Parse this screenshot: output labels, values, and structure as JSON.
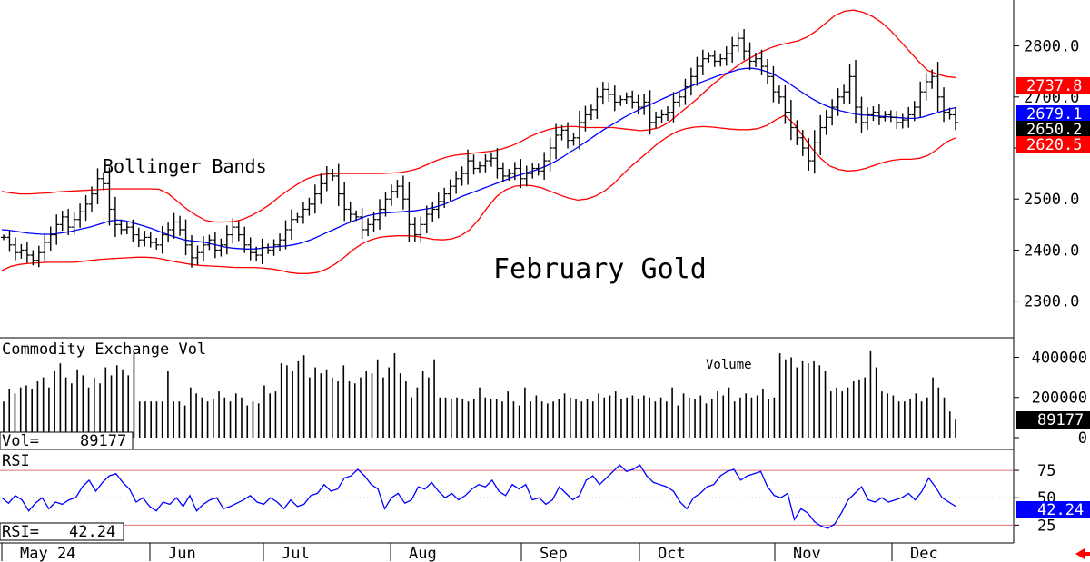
{
  "chart_data": [
    {
      "type": "ohlc-bar",
      "panel": "price",
      "title": "February Gold",
      "annotation": "Bollinger Bands",
      "ylim": [
        2230,
        2890
      ],
      "y_ticks": [
        {
          "value": 2300,
          "label": "2300.0"
        },
        {
          "value": 2400,
          "label": "2400.0"
        },
        {
          "value": 2500,
          "label": "2500.0"
        },
        {
          "value": 2600,
          "label": "2600.0"
        },
        {
          "value": 2700,
          "label": "2700.0"
        },
        {
          "value": 2800,
          "label": "2800.0"
        }
      ],
      "x_labels": [
        "May 24",
        "Jun",
        "Jul",
        "Aug",
        "Sep",
        "Oct",
        "Nov",
        "Dec"
      ],
      "price_series": [
        2425,
        2410,
        2395,
        2400,
        2390,
        2380,
        2395,
        2415,
        2430,
        2450,
        2465,
        2445,
        2460,
        2475,
        2490,
        2510,
        2540,
        2530,
        2480,
        2450,
        2440,
        2445,
        2430,
        2420,
        2425,
        2415,
        2410,
        2430,
        2440,
        2455,
        2440,
        2410,
        2385,
        2395,
        2410,
        2420,
        2400,
        2410,
        2430,
        2445,
        2430,
        2410,
        2395,
        2390,
        2405,
        2400,
        2410,
        2420,
        2440,
        2460,
        2465,
        2480,
        2490,
        2510,
        2530,
        2550,
        2545,
        2510,
        2480,
        2470,
        2465,
        2440,
        2450,
        2460,
        2480,
        2500,
        2515,
        2525,
        2500,
        2450,
        2430,
        2450,
        2470,
        2480,
        2495,
        2510,
        2525,
        2540,
        2550,
        2575,
        2560,
        2565,
        2575,
        2580,
        2560,
        2545,
        2550,
        2560,
        2540,
        2550,
        2560,
        2555,
        2575,
        2600,
        2625,
        2635,
        2615,
        2620,
        2650,
        2665,
        2675,
        2700,
        2715,
        2705,
        2690,
        2695,
        2700,
        2690,
        2680,
        2690,
        2650,
        2660,
        2665,
        2670,
        2690,
        2700,
        2720,
        2740,
        2760,
        2775,
        2780,
        2770,
        2775,
        2785,
        2800,
        2815,
        2790,
        2770,
        2775,
        2760,
        2740,
        2710,
        2700,
        2670,
        2640,
        2620,
        2600,
        2575,
        2610,
        2640,
        2660,
        2680,
        2700,
        2710,
        2740,
        2680,
        2650,
        2665,
        2670,
        2660,
        2665,
        2660,
        2650,
        2655,
        2665,
        2680,
        2710,
        2730,
        2740,
        2700,
        2670,
        2665,
        2650
      ],
      "middle_band": [
        2440,
        2439,
        2437,
        2435,
        2433,
        2432,
        2431,
        2431,
        2432,
        2434,
        2436,
        2439,
        2442,
        2445,
        2449,
        2453,
        2457,
        2459,
        2458,
        2455,
        2451,
        2447,
        2443,
        2438,
        2433,
        2428,
        2424,
        2420,
        2418,
        2417,
        2415,
        2412,
        2409,
        2406,
        2404,
        2403,
        2402,
        2402,
        2403,
        2405,
        2406,
        2407,
        2408,
        2410,
        2413,
        2417,
        2422,
        2428,
        2434,
        2440,
        2446,
        2452,
        2457,
        2462,
        2467,
        2470,
        2472,
        2473,
        2474,
        2475,
        2476,
        2477,
        2479,
        2481,
        2484,
        2488,
        2493,
        2499,
        2505,
        2510,
        2515,
        2520,
        2525,
        2530,
        2535,
        2540,
        2545,
        2549,
        2553,
        2557,
        2562,
        2568,
        2575,
        2583,
        2592,
        2600,
        2609,
        2618,
        2627,
        2636,
        2644,
        2652,
        2660,
        2667,
        2674,
        2680,
        2686,
        2692,
        2698,
        2704,
        2710,
        2716,
        2722,
        2727,
        2732,
        2737,
        2742,
        2746,
        2750,
        2754,
        2756,
        2756,
        2754,
        2750,
        2745,
        2738,
        2730,
        2721,
        2712,
        2703,
        2695,
        2688,
        2682,
        2677,
        2673,
        2670,
        2667,
        2665,
        2664,
        2663,
        2662,
        2661,
        2660,
        2659,
        2658,
        2658,
        2660,
        2664,
        2668,
        2672,
        2676,
        2679
      ],
      "upper_band": [
        2515,
        2512,
        2510,
        2510,
        2511,
        2512,
        2514,
        2515,
        2516,
        2517,
        2518,
        2519,
        2520,
        2520,
        2520,
        2520,
        2520,
        2519,
        2510,
        2495,
        2480,
        2468,
        2458,
        2455,
        2455,
        2456,
        2460,
        2468,
        2478,
        2490,
        2505,
        2518,
        2530,
        2540,
        2546,
        2549,
        2550,
        2550,
        2550,
        2550,
        2550,
        2550,
        2551,
        2552,
        2555,
        2560,
        2568,
        2576,
        2582,
        2586,
        2588,
        2590,
        2592,
        2594,
        2598,
        2604,
        2612,
        2622,
        2630,
        2636,
        2640,
        2642,
        2642,
        2640,
        2640,
        2640,
        2640,
        2638,
        2636,
        2634,
        2636,
        2640,
        2650,
        2665,
        2680,
        2695,
        2712,
        2728,
        2742,
        2755,
        2768,
        2778,
        2788,
        2796,
        2802,
        2806,
        2810,
        2818,
        2830,
        2845,
        2860,
        2868,
        2870,
        2866,
        2858,
        2846,
        2830,
        2810,
        2790,
        2770,
        2752,
        2745,
        2740,
        2738
      ],
      "lower_band": [
        2360,
        2368,
        2372,
        2374,
        2375,
        2376,
        2376,
        2376,
        2376,
        2378,
        2380,
        2382,
        2383,
        2384,
        2385,
        2386,
        2386,
        2385,
        2382,
        2378,
        2375,
        2372,
        2370,
        2369,
        2368,
        2367,
        2366,
        2366,
        2366,
        2365,
        2363,
        2360,
        2356,
        2354,
        2354,
        2356,
        2362,
        2372,
        2385,
        2400,
        2412,
        2420,
        2425,
        2427,
        2428,
        2428,
        2427,
        2424,
        2421,
        2420,
        2422,
        2428,
        2440,
        2460,
        2484,
        2505,
        2518,
        2525,
        2527,
        2526,
        2522,
        2515,
        2508,
        2502,
        2498,
        2500,
        2506,
        2516,
        2530,
        2548,
        2565,
        2580,
        2595,
        2610,
        2622,
        2632,
        2638,
        2641,
        2642,
        2641,
        2639,
        2637,
        2636,
        2636,
        2638,
        2644,
        2655,
        2664,
        2648,
        2625,
        2600,
        2580,
        2565,
        2558,
        2555,
        2556,
        2560,
        2566,
        2572,
        2576,
        2578,
        2578,
        2580,
        2586,
        2598,
        2612,
        2620
      ],
      "value_labels": {
        "upper": "2737.8",
        "middle": "2679.1",
        "close": "2650.2",
        "lower": "2620.5"
      },
      "colors": {
        "bars": "#000000",
        "middle_band": "#0000ff",
        "outer_bands": "#ff0000"
      }
    },
    {
      "type": "bar",
      "panel": "volume",
      "title": "Commodity Exchange Vol",
      "annotation": "Volume",
      "readout_label": "Vol=",
      "readout_value": "89177",
      "current_value": 89177,
      "ylim": [
        0,
        470000
      ],
      "y_ticks": [
        {
          "value": 0,
          "label": "0"
        },
        {
          "value": 200000,
          "label": "200000"
        },
        {
          "value": 400000,
          "label": "400000"
        }
      ],
      "values": [
        180000,
        240000,
        220000,
        250000,
        260000,
        240000,
        280000,
        300000,
        250000,
        330000,
        370000,
        300000,
        270000,
        340000,
        310000,
        250000,
        300000,
        270000,
        350000,
        310000,
        360000,
        340000,
        310000,
        420000,
        180000,
        180000,
        180000,
        180000,
        180000,
        330000,
        180000,
        180000,
        160000,
        250000,
        220000,
        200000,
        180000,
        190000,
        230000,
        200000,
        180000,
        220000,
        200000,
        160000,
        180000,
        170000,
        260000,
        220000,
        230000,
        370000,
        360000,
        330000,
        380000,
        410000,
        300000,
        350000,
        320000,
        340000,
        300000,
        280000,
        360000,
        280000,
        270000,
        300000,
        330000,
        320000,
        390000,
        300000,
        350000,
        420000,
        320000,
        280000,
        200000,
        250000,
        330000,
        300000,
        390000,
        200000,
        200000,
        190000,
        200000,
        190000,
        180000,
        190000,
        250000,
        200000,
        190000,
        190000,
        180000,
        230000,
        180000,
        160000,
        250000,
        180000,
        210000,
        180000,
        170000,
        180000,
        190000,
        220000,
        200000,
        190000,
        180000,
        190000,
        180000,
        220000,
        200000,
        210000,
        230000,
        190000,
        200000,
        210000,
        190000,
        210000,
        200000,
        180000,
        200000,
        180000,
        250000,
        160000,
        220000,
        200000,
        190000,
        210000,
        170000,
        190000,
        230000,
        210000,
        250000,
        180000,
        200000,
        220000,
        200000,
        210000,
        240000,
        190000,
        200000,
        420000,
        390000,
        400000,
        350000,
        380000,
        370000,
        380000,
        360000,
        330000,
        230000,
        250000,
        230000,
        250000,
        280000,
        290000,
        300000,
        430000,
        350000,
        230000,
        220000,
        210000,
        180000,
        180000,
        190000,
        220000,
        180000,
        200000,
        300000,
        250000,
        200000,
        130000,
        89177
      ],
      "colors": {
        "bars": "#000000"
      }
    },
    {
      "type": "line",
      "panel": "rsi",
      "title": "RSI",
      "readout_label": "RSI=",
      "readout_value": "42.24",
      "current_value": 42.24,
      "ylim": [
        12,
        90
      ],
      "reference_lines": [
        75,
        25
      ],
      "y_ticks": [
        {
          "value": 25,
          "label": "25"
        },
        {
          "value": 50,
          "label": "50"
        },
        {
          "value": 75,
          "label": "75"
        }
      ],
      "values": [
        50,
        45,
        52,
        48,
        38,
        45,
        50,
        40,
        46,
        44,
        48,
        50,
        60,
        66,
        56,
        64,
        70,
        72,
        64,
        58,
        46,
        50,
        42,
        38,
        46,
        44,
        50,
        42,
        52,
        38,
        44,
        48,
        50,
        40,
        42,
        45,
        48,
        52,
        46,
        44,
        50,
        46,
        40,
        48,
        42,
        44,
        52,
        54,
        62,
        56,
        58,
        68,
        70,
        76,
        70,
        62,
        58,
        40,
        50,
        54,
        45,
        48,
        60,
        58,
        64,
        56,
        50,
        54,
        48,
        52,
        58,
        62,
        60,
        66,
        56,
        52,
        62,
        58,
        62,
        48,
        50,
        44,
        48,
        60,
        54,
        48,
        52,
        66,
        70,
        62,
        68,
        74,
        80,
        74,
        76,
        80,
        70,
        64,
        62,
        60,
        56,
        46,
        40,
        50,
        54,
        60,
        62,
        70,
        74,
        76,
        66,
        70,
        72,
        74,
        60,
        52,
        50,
        54,
        30,
        40,
        36,
        28,
        24,
        22,
        26,
        36,
        48,
        54,
        60,
        48,
        46,
        50,
        46,
        48,
        50,
        54,
        48,
        56,
        68,
        60,
        50,
        46,
        42.24
      ],
      "colors": {
        "line": "#0000ff",
        "reference": "#e07070"
      }
    }
  ]
}
